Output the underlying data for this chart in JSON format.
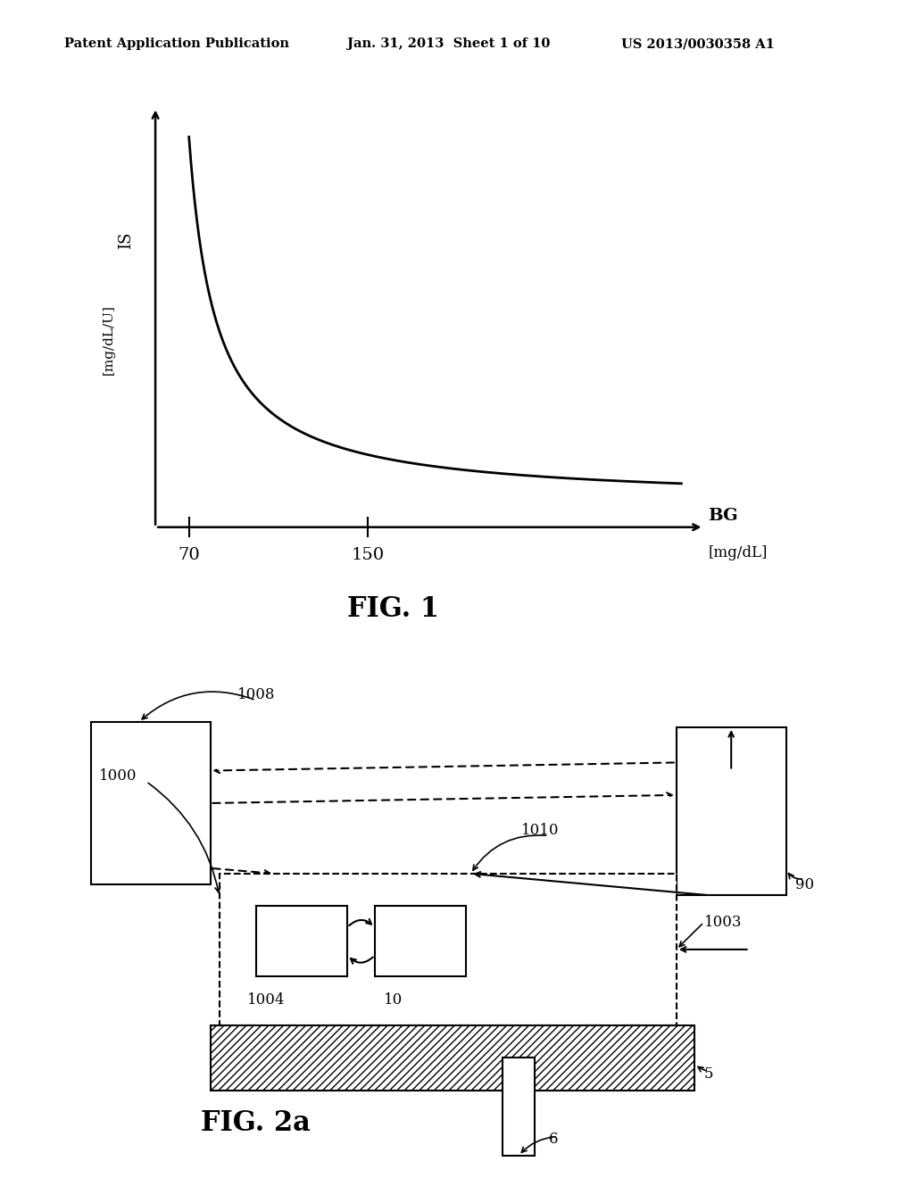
{
  "bg_color": "#ffffff",
  "header_left": "Patent Application Publication",
  "header_mid": "Jan. 31, 2013  Sheet 1 of 10",
  "header_right": "US 2013/0030358 A1",
  "fig1_ylabel_line1": "IS",
  "fig1_ylabel_line2": "[mg/dL/U]",
  "fig1_xlabel_line1": "BG",
  "fig1_xlabel_line2": "[mg/dL]",
  "fig1_tick1": "70",
  "fig1_tick2": "150",
  "fig1_caption": "FIG. 1",
  "fig2_caption": "FIG. 2a"
}
